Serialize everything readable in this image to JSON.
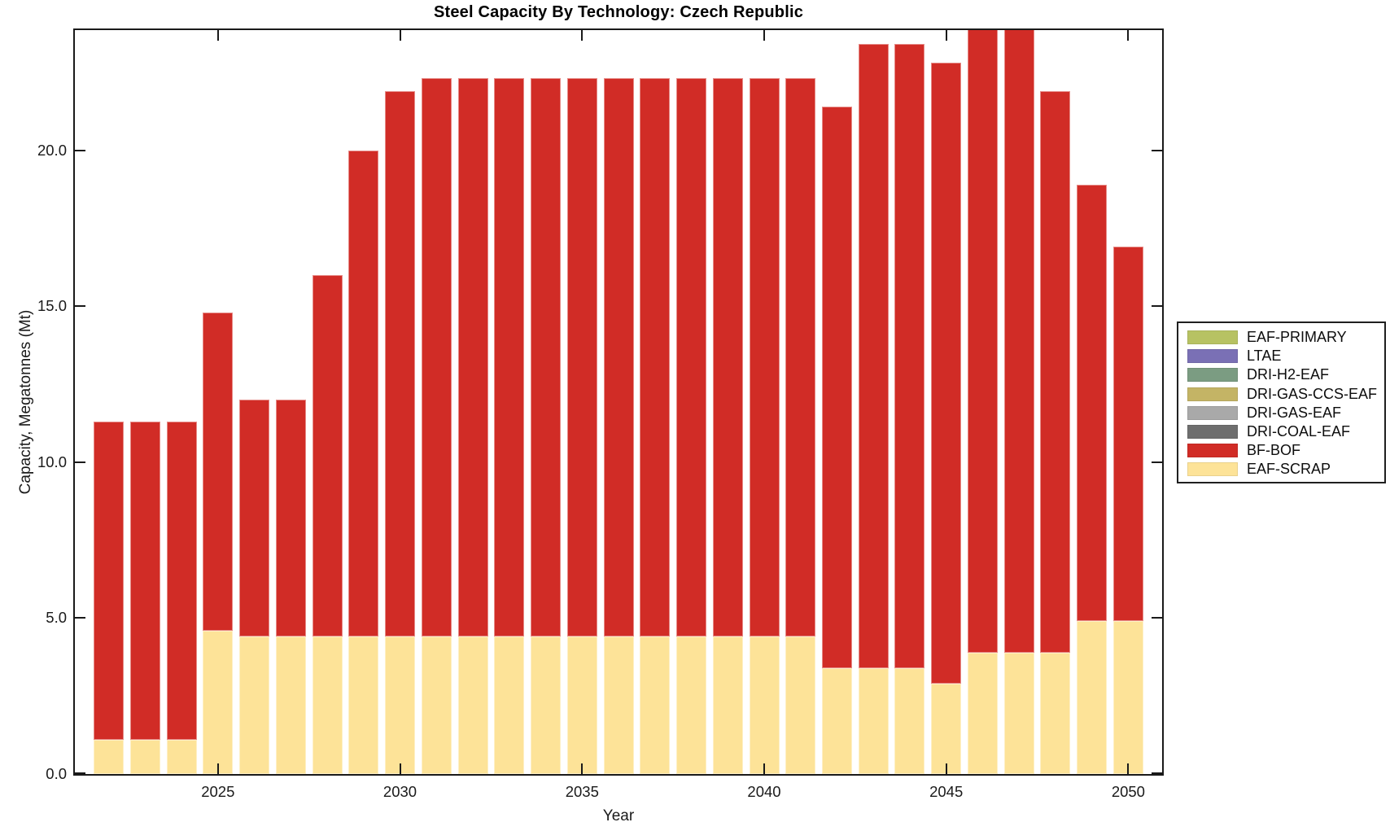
{
  "title": "Steel Capacity By Technology: Czech Republic",
  "chart_data": {
    "type": "bar",
    "stacked": true,
    "title": "Steel Capacity By Technology: Czech Republic",
    "xlabel": "Year",
    "ylabel": "Capacity, Megatonnes (Mt)",
    "grid": false,
    "legend_position": "right-outside",
    "x": [
      2022,
      2023,
      2024,
      2025,
      2026,
      2027,
      2028,
      2029,
      2030,
      2031,
      2032,
      2033,
      2034,
      2035,
      2036,
      2037,
      2038,
      2039,
      2040,
      2041,
      2042,
      2043,
      2044,
      2045,
      2046,
      2047,
      2048,
      2049,
      2050
    ],
    "series": [
      {
        "name": "EAF-SCRAP",
        "color": "#fde398",
        "values": [
          1.1,
          1.1,
          1.1,
          4.6,
          4.4,
          4.4,
          4.4,
          4.4,
          4.4,
          4.4,
          4.4,
          4.4,
          4.4,
          4.4,
          4.4,
          4.4,
          4.4,
          4.4,
          4.4,
          4.4,
          3.4,
          3.4,
          3.4,
          2.9,
          3.9,
          3.9,
          3.9,
          4.9,
          4.9
        ]
      },
      {
        "name": "BF-BOF",
        "color": "#d12c26",
        "values": [
          10.2,
          10.2,
          10.2,
          10.2,
          7.6,
          7.6,
          11.6,
          15.6,
          17.5,
          17.9,
          17.9,
          17.9,
          17.9,
          17.9,
          17.9,
          17.9,
          17.9,
          17.9,
          17.9,
          17.9,
          18.0,
          20.0,
          20.0,
          19.9,
          20.1,
          20.1,
          18.0,
          14.0,
          12.0
        ]
      }
    ],
    "totals": [
      11.3,
      11.3,
      11.3,
      14.8,
      12.0,
      12.0,
      16.0,
      20.0,
      21.9,
      22.3,
      22.3,
      22.3,
      22.3,
      22.3,
      22.3,
      22.3,
      22.3,
      22.3,
      22.3,
      22.3,
      21.4,
      23.4,
      23.4,
      22.8,
      24.0,
      24.0,
      21.9,
      18.9,
      16.9
    ],
    "x_ticks": [
      2025,
      2030,
      2035,
      2040,
      2045,
      2050
    ],
    "y_ticks": [
      0,
      5,
      10,
      15,
      20
    ],
    "y_tick_labels": [
      "0.0",
      "5.0",
      "10.0",
      "15.0",
      "20.0"
    ],
    "ylim": [
      0,
      23.85
    ],
    "xlim": [
      2021.07,
      2050.93
    ],
    "legend": [
      {
        "label": "EAF-PRIMARY",
        "color": "#b7c263"
      },
      {
        "label": "LTAE",
        "color": "#7a70b5"
      },
      {
        "label": "DRI-H2-EAF",
        "color": "#7b9c82"
      },
      {
        "label": "DRI-GAS-CCS-EAF",
        "color": "#c4b465"
      },
      {
        "label": "DRI-GAS-EAF",
        "color": "#a9a9a9"
      },
      {
        "label": "DRI-COAL-EAF",
        "color": "#6e6e6e"
      },
      {
        "label": "BF-BOF",
        "color": "#d12c26"
      },
      {
        "label": "EAF-SCRAP",
        "color": "#fde398"
      }
    ]
  }
}
